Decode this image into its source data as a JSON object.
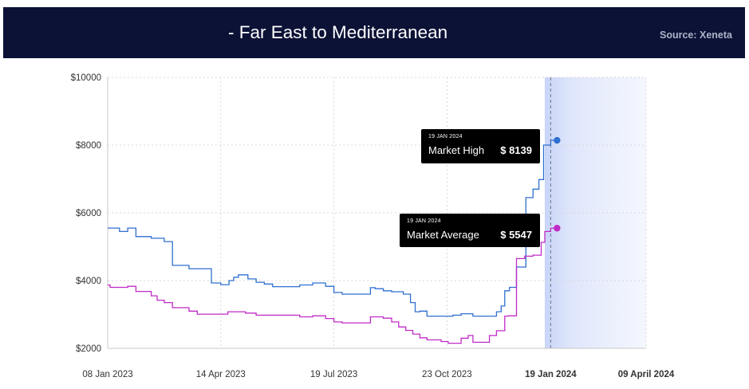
{
  "header": {
    "title": "- Far East to Mediterranean",
    "source": "Source: Xeneta"
  },
  "chart_data": {
    "type": "line",
    "title": "- Far East to Mediterranean",
    "source": "Source: Xeneta",
    "ylim": [
      2000,
      10000
    ],
    "yticks": [
      2000,
      4000,
      6000,
      8000,
      10000
    ],
    "ytick_labels": [
      "$2000",
      "$4000",
      "$6000",
      "$8000",
      "$10000"
    ],
    "x_axis": {
      "start": "2023-01-08",
      "end": "2024-04-09",
      "ticks": [
        {
          "date": "2023-01-08",
          "label": "08 Jan 2023"
        },
        {
          "date": "2023-04-14",
          "label": "14 Apr 2023"
        },
        {
          "date": "2023-07-19",
          "label": "19 Jul 2023"
        },
        {
          "date": "2023-10-23",
          "label": "23 Oct 2023"
        },
        {
          "date": "2024-01-19",
          "label": "19 Jan 2024",
          "highlight": true
        },
        {
          "date": "2024-04-09",
          "label": "09 April 2024",
          "highlight": true
        }
      ]
    },
    "forecast_region": {
      "from": "2024-01-14",
      "to": "2024-04-09"
    },
    "current_date_marker": "2024-01-19",
    "grid": true,
    "series": [
      {
        "name": "Market High",
        "color": "#2f6fd0",
        "step": true,
        "points": [
          [
            "2023-01-08",
            5550
          ],
          [
            "2023-01-18",
            5450
          ],
          [
            "2023-01-25",
            5550
          ],
          [
            "2023-02-01",
            5300
          ],
          [
            "2023-02-14",
            5250
          ],
          [
            "2023-02-25",
            5150
          ],
          [
            "2023-03-04",
            4450
          ],
          [
            "2023-03-18",
            4350
          ],
          [
            "2023-04-06",
            3930
          ],
          [
            "2023-04-14",
            3880
          ],
          [
            "2023-04-21",
            4000
          ],
          [
            "2023-04-25",
            4100
          ],
          [
            "2023-04-29",
            4170
          ],
          [
            "2023-05-07",
            4050
          ],
          [
            "2023-05-14",
            3950
          ],
          [
            "2023-05-21",
            3900
          ],
          [
            "2023-05-28",
            3820
          ],
          [
            "2023-06-20",
            3870
          ],
          [
            "2023-07-01",
            3930
          ],
          [
            "2023-07-12",
            3830
          ],
          [
            "2023-07-19",
            3650
          ],
          [
            "2023-07-26",
            3600
          ],
          [
            "2023-08-19",
            3790
          ],
          [
            "2023-08-23",
            3760
          ],
          [
            "2023-08-30",
            3700
          ],
          [
            "2023-09-06",
            3670
          ],
          [
            "2023-09-16",
            3600
          ],
          [
            "2023-09-22",
            3350
          ],
          [
            "2023-09-26",
            3080
          ],
          [
            "2023-09-30",
            3100
          ],
          [
            "2023-10-06",
            2950
          ],
          [
            "2023-10-28",
            2980
          ],
          [
            "2023-11-04",
            3020
          ],
          [
            "2023-11-14",
            2950
          ],
          [
            "2023-12-04",
            3080
          ],
          [
            "2023-12-08",
            3250
          ],
          [
            "2023-12-11",
            3700
          ],
          [
            "2023-12-15",
            3800
          ],
          [
            "2023-12-21",
            4400
          ],
          [
            "2023-12-29",
            6450
          ],
          [
            "2024-01-04",
            6700
          ],
          [
            "2024-01-09",
            6980
          ],
          [
            "2024-01-13",
            8000
          ],
          [
            "2024-01-19",
            8139
          ]
        ]
      },
      {
        "name": "Market Average",
        "color": "#c02bc7",
        "step": true,
        "points": [
          [
            "2023-01-08",
            3870
          ],
          [
            "2023-01-10",
            3800
          ],
          [
            "2023-01-25",
            3830
          ],
          [
            "2023-02-01",
            3680
          ],
          [
            "2023-02-14",
            3550
          ],
          [
            "2023-02-19",
            3420
          ],
          [
            "2023-02-25",
            3350
          ],
          [
            "2023-03-04",
            3200
          ],
          [
            "2023-03-18",
            3100
          ],
          [
            "2023-03-25",
            3010
          ],
          [
            "2023-04-20",
            3080
          ],
          [
            "2023-05-05",
            3040
          ],
          [
            "2023-05-14",
            2980
          ],
          [
            "2023-06-20",
            2930
          ],
          [
            "2023-07-01",
            2960
          ],
          [
            "2023-07-12",
            2880
          ],
          [
            "2023-07-19",
            2780
          ],
          [
            "2023-07-26",
            2750
          ],
          [
            "2023-08-19",
            2930
          ],
          [
            "2023-08-30",
            2890
          ],
          [
            "2023-09-06",
            2780
          ],
          [
            "2023-09-12",
            2630
          ],
          [
            "2023-09-18",
            2530
          ],
          [
            "2023-09-24",
            2420
          ],
          [
            "2023-09-30",
            2310
          ],
          [
            "2023-10-06",
            2250
          ],
          [
            "2023-10-18",
            2200
          ],
          [
            "2023-10-24",
            2150
          ],
          [
            "2023-11-04",
            2300
          ],
          [
            "2023-11-10",
            2380
          ],
          [
            "2023-11-14",
            2180
          ],
          [
            "2023-11-28",
            2380
          ],
          [
            "2023-12-04",
            2520
          ],
          [
            "2023-12-11",
            2950
          ],
          [
            "2023-12-14",
            2960
          ],
          [
            "2023-12-21",
            4650
          ],
          [
            "2023-12-28",
            4720
          ],
          [
            "2024-01-04",
            4750
          ],
          [
            "2024-01-11",
            5130
          ],
          [
            "2024-01-14",
            5450
          ],
          [
            "2024-01-19",
            5547
          ]
        ]
      }
    ],
    "annotations": [
      {
        "series": "Market High",
        "date_label": "19 JAN 2024",
        "label": "Market High",
        "value": 8139,
        "value_label": "$ 8139"
      },
      {
        "series": "Market Average",
        "date_label": "19 JAN 2024",
        "label": "Market Average",
        "value": 5547,
        "value_label": "$ 5547"
      }
    ]
  }
}
